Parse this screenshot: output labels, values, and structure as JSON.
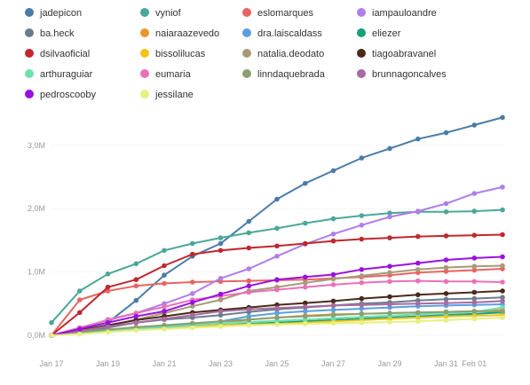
{
  "chart_data": {
    "type": "line",
    "title": "",
    "xlabel": "",
    "ylabel": "",
    "x_tick_labels": [
      "Jan 17",
      "Jan 19",
      "Jan 21",
      "Jan 23",
      "Jan 25",
      "Jan 27",
      "Jan 29",
      "Jan 31",
      "Feb 01"
    ],
    "x_tick_days": [
      0,
      2,
      4,
      6,
      8,
      10,
      12,
      14,
      15
    ],
    "y_tick_labels": [
      "0,0M",
      "1,0M",
      "2,0M",
      "3,0M"
    ],
    "y_tick_values": [
      0,
      1000000,
      2000000,
      3000000
    ],
    "ylim": [
      0,
      3600000
    ],
    "xlim_days": [
      0,
      16
    ],
    "grid": "horizontal",
    "legend_position": "top",
    "x_days": [
      0,
      1,
      2,
      3,
      4,
      5,
      6,
      7,
      8,
      9,
      10,
      11,
      12,
      13,
      14,
      15,
      16
    ],
    "series": [
      {
        "name": "jadepicon",
        "color": "#4a7ca8",
        "values": [
          0,
          100000,
          200000,
          550000,
          950000,
          1250000,
          1450000,
          1800000,
          2150000,
          2400000,
          2600000,
          2800000,
          2950000,
          3100000,
          3200000,
          3320000,
          3440000
        ]
      },
      {
        "name": "vyniof",
        "color": "#4aa89a",
        "values": [
          200000,
          700000,
          970000,
          1130000,
          1340000,
          1450000,
          1540000,
          1620000,
          1690000,
          1770000,
          1840000,
          1890000,
          1930000,
          1950000,
          1950000,
          1960000,
          1980000
        ]
      },
      {
        "name": "eslomarques",
        "color": "#e86461",
        "values": [
          0,
          560000,
          700000,
          780000,
          820000,
          840000,
          850000,
          860000,
          870000,
          880000,
          900000,
          920000,
          950000,
          990000,
          1010000,
          1030000,
          1050000
        ]
      },
      {
        "name": "iampauloandre",
        "color": "#b07ee8",
        "values": [
          0,
          100000,
          250000,
          350000,
          500000,
          660000,
          900000,
          1050000,
          1250000,
          1440000,
          1600000,
          1740000,
          1870000,
          1960000,
          2080000,
          2240000,
          2340000
        ]
      },
      {
        "name": "ba.heck",
        "color": "#6b7d8c",
        "values": [
          0,
          60000,
          120000,
          200000,
          250000,
          280000,
          320000,
          370000,
          410000,
          440000,
          470000,
          500000,
          520000,
          550000,
          570000,
          580000,
          600000
        ]
      },
      {
        "name": "naiaraazevedo",
        "color": "#e8962a",
        "values": [
          0,
          40000,
          90000,
          120000,
          140000,
          160000,
          180000,
          250000,
          280000,
          310000,
          330000,
          340000,
          350000,
          360000,
          370000,
          380000,
          400000
        ]
      },
      {
        "name": "dra.laiscaldass",
        "color": "#5b9fe0",
        "values": [
          0,
          40000,
          80000,
          120000,
          150000,
          180000,
          220000,
          300000,
          350000,
          380000,
          400000,
          420000,
          440000,
          460000,
          470000,
          480000,
          490000
        ]
      },
      {
        "name": "eliezer",
        "color": "#12a17a",
        "values": [
          0,
          30000,
          60000,
          90000,
          120000,
          140000,
          160000,
          180000,
          200000,
          220000,
          240000,
          260000,
          280000,
          300000,
          320000,
          340000,
          360000
        ]
      },
      {
        "name": "dsilvaoficial",
        "color": "#c0282e",
        "values": [
          0,
          360000,
          760000,
          880000,
          1100000,
          1280000,
          1340000,
          1380000,
          1410000,
          1450000,
          1490000,
          1520000,
          1540000,
          1560000,
          1570000,
          1580000,
          1590000
        ]
      },
      {
        "name": "bissolilucas",
        "color": "#f2c31a",
        "values": [
          0,
          40000,
          80000,
          100000,
          120000,
          140000,
          160000,
          170000,
          180000,
          200000,
          220000,
          240000,
          260000,
          280000,
          300000,
          310000,
          320000
        ]
      },
      {
        "name": "natalia.deodato",
        "color": "#a89a78",
        "values": [
          0,
          60000,
          150000,
          250000,
          350000,
          460000,
          560000,
          700000,
          760000,
          830000,
          890000,
          940000,
          990000,
          1040000,
          1070000,
          1090000,
          1100000
        ]
      },
      {
        "name": "tiagoabravanel",
        "color": "#4a2a1a",
        "values": [
          0,
          80000,
          160000,
          240000,
          300000,
          360000,
          400000,
          440000,
          480000,
          510000,
          540000,
          580000,
          610000,
          640000,
          660000,
          680000,
          700000
        ]
      },
      {
        "name": "arthuraguiar",
        "color": "#6fe0b0",
        "values": [
          0,
          30000,
          60000,
          100000,
          130000,
          160000,
          190000,
          210000,
          230000,
          250000,
          270000,
          290000,
          310000,
          330000,
          350000,
          370000,
          440000
        ]
      },
      {
        "name": "eumaria",
        "color": "#e872b8",
        "values": [
          0,
          120000,
          240000,
          350000,
          450000,
          560000,
          620000,
          680000,
          720000,
          760000,
          800000,
          830000,
          850000,
          860000,
          850000,
          850000,
          840000
        ]
      },
      {
        "name": "linndaquebrada",
        "color": "#8aa070",
        "values": [
          0,
          50000,
          90000,
          130000,
          160000,
          190000,
          220000,
          250000,
          280000,
          300000,
          320000,
          340000,
          350000,
          360000,
          370000,
          380000,
          380000
        ]
      },
      {
        "name": "brunnagoncalves",
        "color": "#a86aa0",
        "values": [
          0,
          70000,
          140000,
          200000,
          260000,
          320000,
          380000,
          410000,
          430000,
          450000,
          470000,
          480000,
          490000,
          500000,
          510000,
          520000,
          540000
        ]
      },
      {
        "name": "pedroscooby",
        "color": "#9a10e0",
        "values": [
          0,
          100000,
          200000,
          300000,
          380000,
          520000,
          650000,
          780000,
          880000,
          920000,
          960000,
          1040000,
          1090000,
          1140000,
          1190000,
          1220000,
          1240000
        ]
      },
      {
        "name": "jessilane",
        "color": "#e6f080",
        "values": [
          0,
          20000,
          50000,
          80000,
          100000,
          120000,
          140000,
          160000,
          170000,
          180000,
          190000,
          200000,
          210000,
          220000,
          240000,
          260000,
          280000
        ]
      }
    ]
  }
}
